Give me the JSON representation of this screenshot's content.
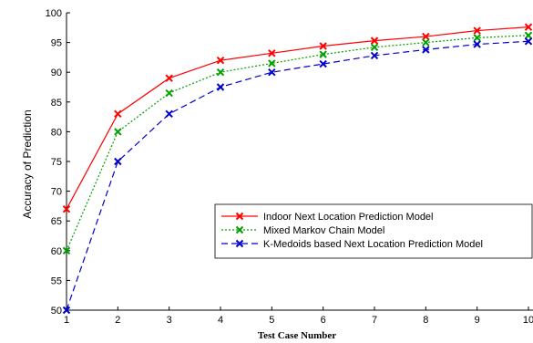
{
  "chart_data": {
    "type": "line",
    "xlabel": "Test Case Number",
    "ylabel": "Accuracy of Prediction",
    "x": [
      1,
      2,
      3,
      4,
      5,
      6,
      7,
      8,
      9,
      10
    ],
    "xlim": [
      1,
      10
    ],
    "ylim": [
      50,
      100
    ],
    "x_ticks": [
      "1",
      "2",
      "3",
      "4",
      "5",
      "6",
      "7",
      "8",
      "9",
      "10"
    ],
    "y_ticks": [
      "50",
      "55",
      "60",
      "65",
      "70",
      "75",
      "80",
      "85",
      "90",
      "95",
      "100"
    ],
    "grid": false,
    "legend_position": "center-right",
    "series": [
      {
        "name": "Indoor Next Location Prediction Model",
        "color": "#ff0000",
        "dash": "solid",
        "marker": "x",
        "values": [
          67,
          83,
          89,
          92,
          93.2,
          94.4,
          95.3,
          96,
          97,
          97.6
        ]
      },
      {
        "name": "Mixed Markov Chain Model",
        "color": "#00a000",
        "dash": "dotted",
        "marker": "x",
        "values": [
          60,
          80,
          86.5,
          90,
          91.5,
          93,
          94.2,
          95,
          95.8,
          96.2
        ]
      },
      {
        "name": "K-Medoids based Next Location Prediction Model",
        "color": "#0000cc",
        "dash": "dashed",
        "marker": "x",
        "values": [
          50,
          75,
          83,
          87.5,
          90,
          91.4,
          92.8,
          93.8,
          94.7,
          95.2
        ]
      }
    ]
  }
}
